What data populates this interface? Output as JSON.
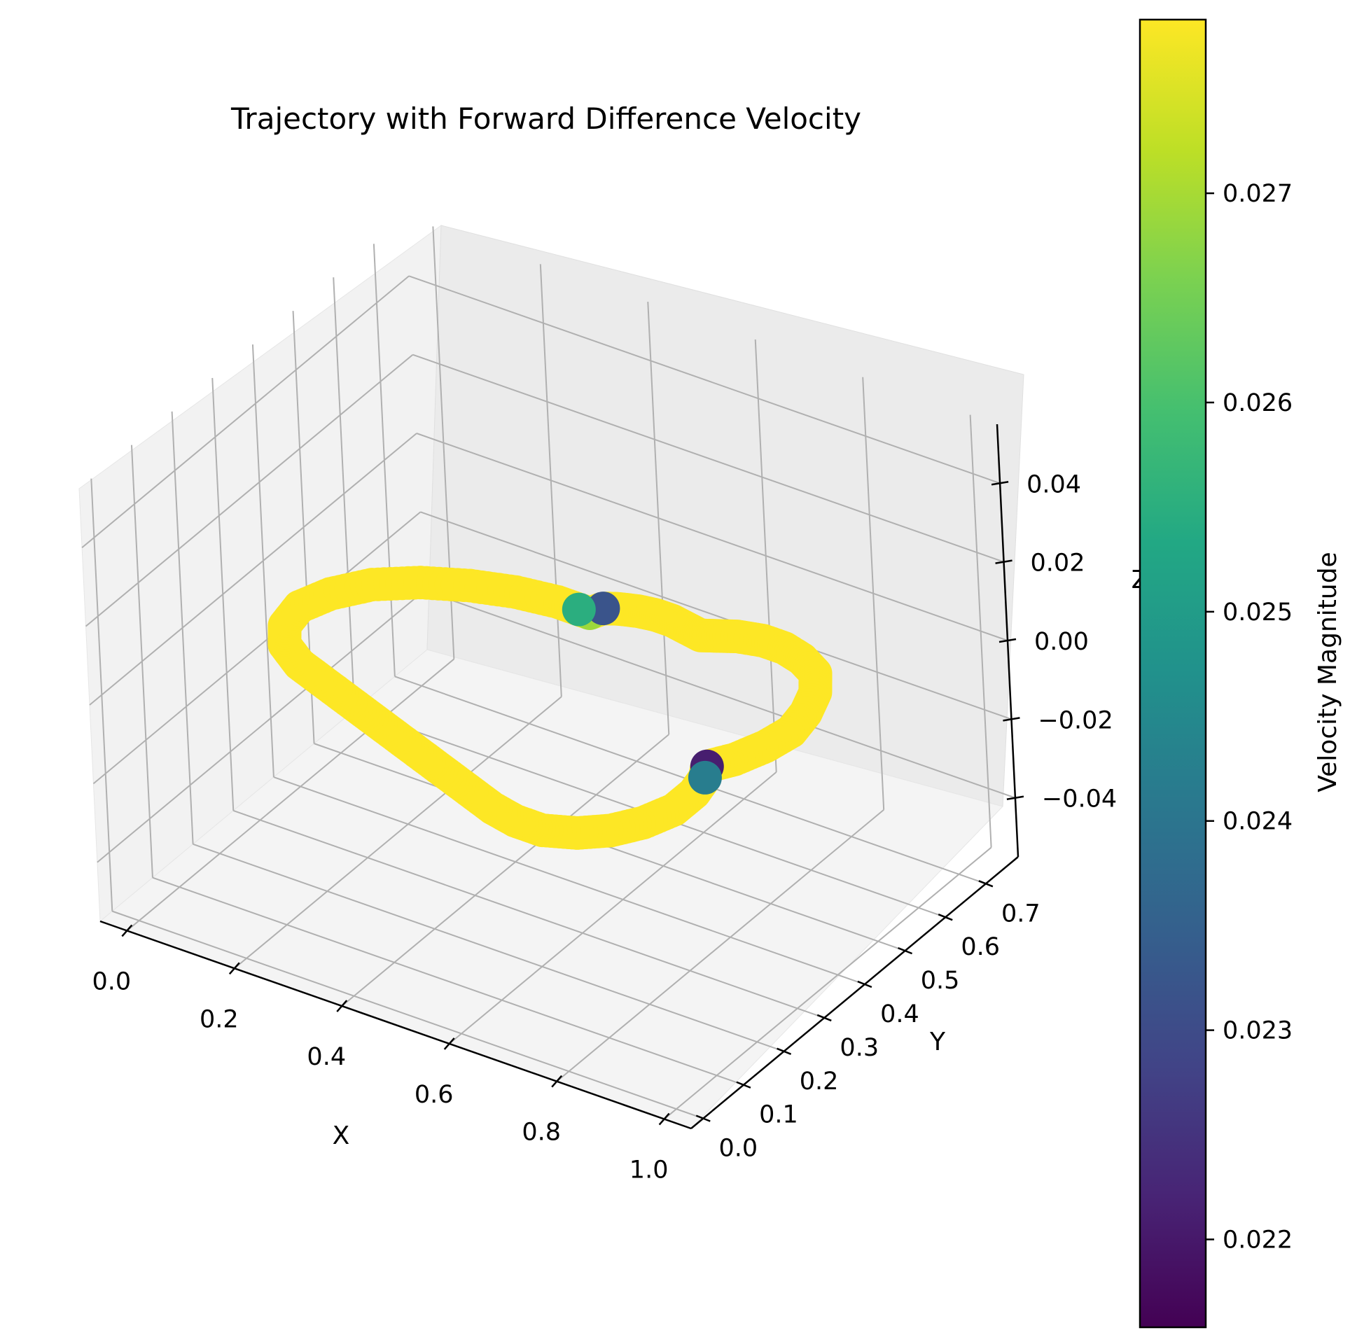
{
  "chart_data": {
    "type": "scatter",
    "projection": "3d",
    "title": "Trajectory with Forward Difference Velocity",
    "xlabel": "X",
    "ylabel": "Y",
    "zlabel": "Z",
    "xlim": [
      -0.05,
      1.05
    ],
    "ylim": [
      -0.03,
      0.78
    ],
    "zlim": [
      -0.055,
      0.055
    ],
    "xticks": [
      0.0,
      0.2,
      0.4,
      0.6,
      0.8,
      1.0
    ],
    "yticks": [
      0.0,
      0.1,
      0.2,
      0.3,
      0.4,
      0.5,
      0.6,
      0.7
    ],
    "zticks": [
      -0.04,
      -0.02,
      0.0,
      0.02,
      0.04
    ],
    "xtick_labels": [
      "0.0",
      "0.2",
      "0.4",
      "0.6",
      "0.8",
      "1.0"
    ],
    "ytick_labels": [
      "0.0",
      "0.1",
      "0.2",
      "0.3",
      "0.4",
      "0.5",
      "0.6",
      "0.7"
    ],
    "ztick_labels": [
      "−0.04",
      "−0.02",
      "0.00",
      "0.02",
      "0.04"
    ],
    "grid": true,
    "colormap": "viridis",
    "colorbar": {
      "label": "Velocity Magnitude",
      "range": [
        0.02158,
        0.02783
      ],
      "ticks": [
        0.022,
        0.023,
        0.024,
        0.025,
        0.026,
        0.027
      ],
      "tick_labels": [
        "0.022",
        "0.023",
        "0.024",
        "0.025",
        "0.026",
        "0.027"
      ]
    },
    "series": [
      {
        "z": 0.0,
        "note_shape": "closed loop of points along a heart-like curve in the z=0 plane",
        "points": [
          [
            0.46,
            0.53
          ],
          [
            0.47,
            0.55
          ],
          [
            0.49,
            0.56
          ],
          [
            0.52,
            0.57
          ],
          [
            0.55,
            0.575
          ],
          [
            0.58,
            0.575
          ],
          [
            0.61,
            0.57
          ],
          [
            0.64,
            0.565
          ],
          [
            0.66,
            0.575
          ],
          [
            0.69,
            0.59
          ],
          [
            0.73,
            0.6
          ],
          [
            0.77,
            0.6
          ],
          [
            0.81,
            0.59
          ],
          [
            0.85,
            0.57
          ],
          [
            0.88,
            0.53
          ],
          [
            0.9,
            0.48
          ],
          [
            0.91,
            0.43
          ],
          [
            0.9,
            0.38
          ],
          [
            0.88,
            0.33
          ],
          [
            0.855,
            0.295
          ],
          [
            0.87,
            0.27
          ],
          [
            0.88,
            0.23
          ],
          [
            0.88,
            0.18
          ],
          [
            0.86,
            0.13
          ],
          [
            0.83,
            0.09
          ],
          [
            0.79,
            0.06
          ],
          [
            0.74,
            0.04
          ],
          [
            0.69,
            0.04
          ],
          [
            0.64,
            0.05
          ],
          [
            0.58,
            0.07
          ],
          [
            0.52,
            0.09
          ],
          [
            0.46,
            0.11
          ],
          [
            0.4,
            0.13
          ],
          [
            0.34,
            0.15
          ],
          [
            0.28,
            0.17
          ],
          [
            0.22,
            0.19
          ],
          [
            0.16,
            0.21
          ],
          [
            0.11,
            0.24
          ],
          [
            0.08,
            0.28
          ],
          [
            0.07,
            0.33
          ],
          [
            0.09,
            0.38
          ],
          [
            0.13,
            0.43
          ],
          [
            0.19,
            0.47
          ],
          [
            0.26,
            0.5
          ],
          [
            0.33,
            0.52
          ],
          [
            0.4,
            0.53
          ],
          [
            0.44,
            0.53
          ]
        ],
        "velocity": [
          0.0269,
          0.0232,
          0.02783,
          0.02783,
          0.02783,
          0.02783,
          0.02783,
          0.02783,
          0.02783,
          0.02783,
          0.02783,
          0.02783,
          0.02783,
          0.02783,
          0.02783,
          0.02783,
          0.02783,
          0.02783,
          0.02783,
          0.0221,
          0.0242,
          0.02783,
          0.02783,
          0.02783,
          0.02783,
          0.02783,
          0.02783,
          0.02783,
          0.02783,
          0.02783,
          0.02783,
          0.02783,
          0.02783,
          0.02783,
          0.02783,
          0.02783,
          0.02783,
          0.02783,
          0.02783,
          0.02783,
          0.02783,
          0.02783,
          0.02783,
          0.02783,
          0.02783,
          0.02783,
          0.0255
        ]
      }
    ]
  }
}
